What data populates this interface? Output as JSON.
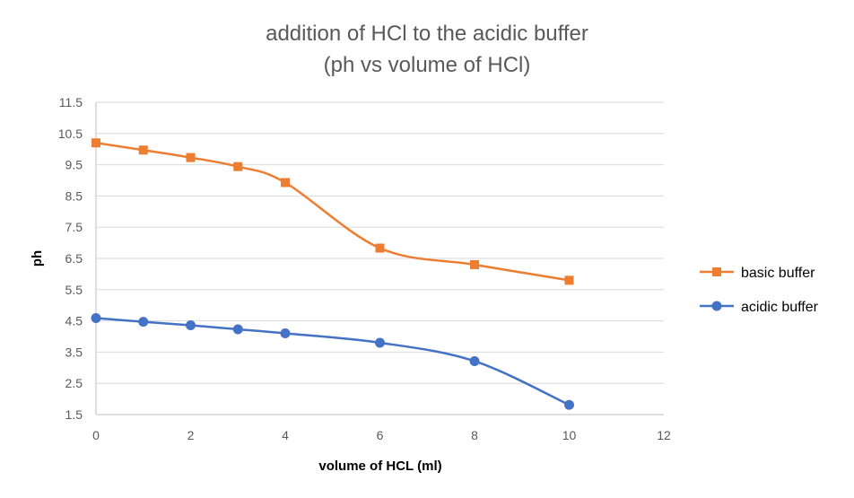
{
  "chart_data": {
    "type": "line",
    "title": [
      "addition of HCl to the acidic buffer",
      "(ph vs volume of HCl)"
    ],
    "xlabel": "volume of HCL (ml)",
    "ylabel": "ph",
    "xlim": [
      0,
      12
    ],
    "ylim": [
      1.5,
      11.5
    ],
    "xticks": [
      "0",
      "2",
      "4",
      "6",
      "8",
      "10",
      "12"
    ],
    "yticks": [
      "1.5",
      "2.5",
      "3.5",
      "4.5",
      "5.5",
      "6.5",
      "7.5",
      "8.5",
      "9.5",
      "10.5",
      "11.5"
    ],
    "grid": "horizontal",
    "smoothed": true,
    "legend_position": "right",
    "series": [
      {
        "name": "basic buffer",
        "color": "#ED7D31",
        "marker": "square",
        "x": [
          0,
          1,
          2,
          3,
          4,
          6,
          8,
          10
        ],
        "y": [
          10.2,
          9.97,
          9.73,
          9.44,
          8.93,
          6.83,
          6.3,
          5.8
        ]
      },
      {
        "name": "acidic buffer",
        "color": "#4472C4",
        "marker": "circle",
        "x": [
          0,
          1,
          2,
          3,
          4,
          6,
          8,
          10
        ],
        "y": [
          4.59,
          4.47,
          4.36,
          4.23,
          4.1,
          3.8,
          3.21,
          1.81
        ]
      }
    ]
  }
}
